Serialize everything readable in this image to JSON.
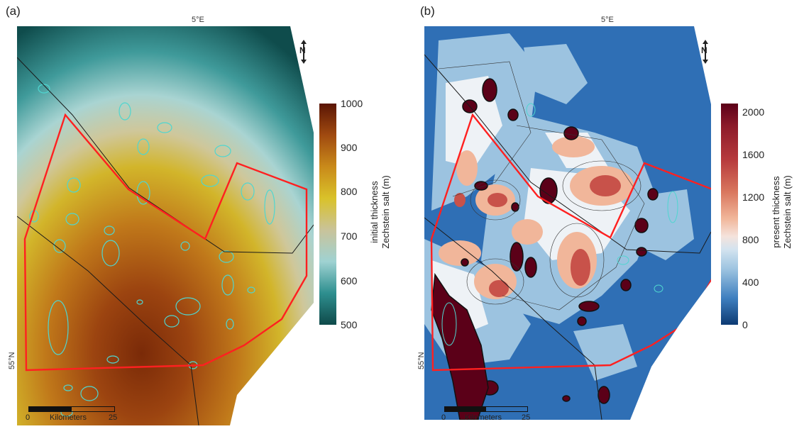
{
  "panels": [
    {
      "letter": "(a)",
      "lon_label": "5°E",
      "lat_label": "55°N",
      "north_label": "N",
      "scale": {
        "start": "0",
        "unit": "Kilometers",
        "end": "25"
      },
      "colorbar": {
        "label_line1": "initial thickness",
        "label_line2": "Zechstein salt (m)",
        "ticks": [
          "1000",
          "900",
          "800",
          "700",
          "600",
          "500"
        ],
        "colors": [
          "#5a1505",
          "#a04a10",
          "#c98a1a",
          "#d9c22a",
          "#c9c39a",
          "#9fd2d2",
          "#2e8f8f",
          "#0f4a4a"
        ]
      }
    },
    {
      "letter": "(b)",
      "lon_label": "5°E",
      "lat_label": "55°N",
      "north_label": "N",
      "scale": {
        "start": "0",
        "unit": "Kilometers",
        "end": "25"
      },
      "colorbar": {
        "label_line1": "present thickness",
        "label_line2": "Zechstein salt (m)",
        "ticks": [
          "2000",
          "1600",
          "1200",
          "800",
          "400",
          "0"
        ],
        "colors": [
          "#5b0018",
          "#8c1a2a",
          "#b6393c",
          "#d9775e",
          "#f1b69a",
          "#f5e3dc",
          "#d3e3ef",
          "#9cc3e0",
          "#3e7fbf",
          "#0d3a73"
        ]
      }
    }
  ],
  "colors": {
    "outline": "#ff2020",
    "fault": "#1a1a1a",
    "contour_cyan": "#4fd6d0",
    "ocean_blue": "#2f6fb5"
  }
}
